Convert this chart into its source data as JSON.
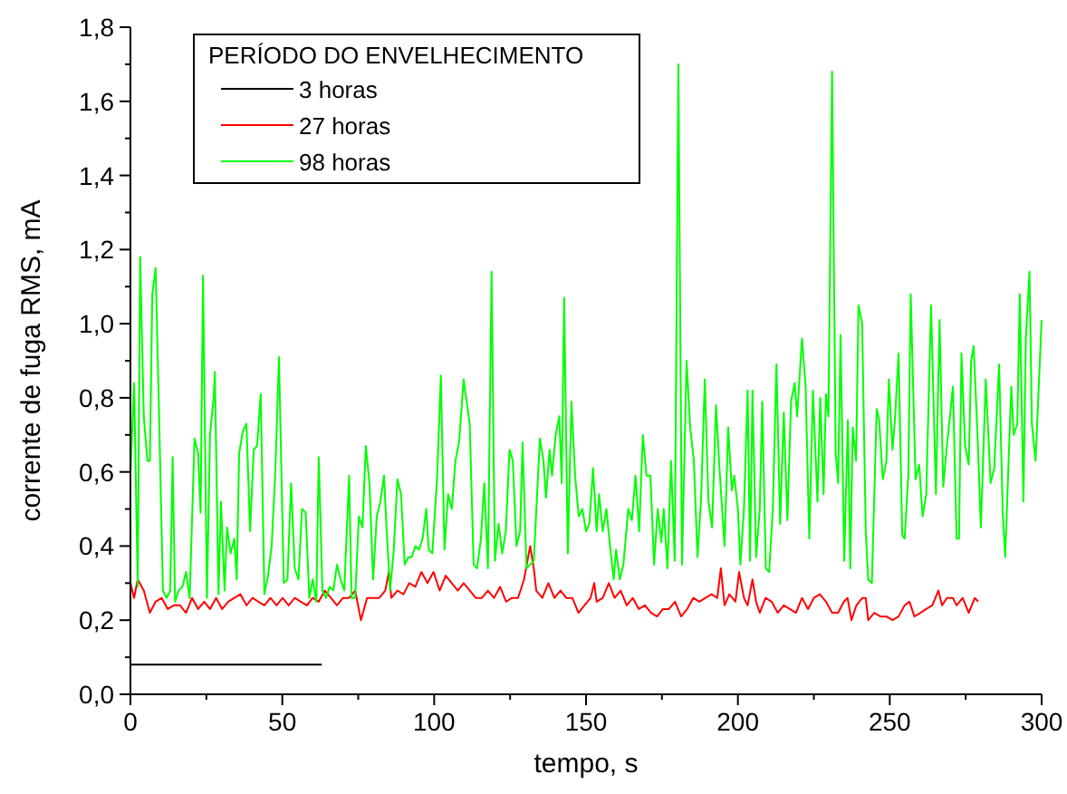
{
  "chart_data": {
    "type": "line",
    "xlabel": "tempo, s",
    "ylabel": "corrente de fuga RMS, mA",
    "legend_title": "PERÍODO DO ENVELHECIMENTO",
    "legend": "top left",
    "grid": false,
    "xlim": [
      0,
      300
    ],
    "ylim": [
      0,
      1.8
    ],
    "xticks": [
      0,
      {
        "value": 25,
        "label": null
      },
      50,
      {
        "value": 75,
        "label": null
      },
      100,
      {
        "value": 125,
        "label": null
      },
      150,
      {
        "value": 175,
        "label": null
      },
      200,
      {
        "value": 225,
        "label": null
      },
      250,
      {
        "value": 275,
        "label": null
      },
      300
    ],
    "yticks": [
      {
        "value": 0,
        "label": "0,0"
      },
      {
        "value": 0.1,
        "label": null
      },
      {
        "value": 0.2,
        "label": "0,2"
      },
      {
        "value": 0.3,
        "label": null
      },
      {
        "value": 0.4,
        "label": "0,4"
      },
      {
        "value": 0.5,
        "label": null
      },
      {
        "value": 0.6,
        "label": "0,6"
      },
      {
        "value": 0.7,
        "label": null
      },
      {
        "value": 0.8,
        "label": "0,8"
      },
      {
        "value": 0.9,
        "label": null
      },
      {
        "value": 1.0,
        "label": "1,0"
      },
      {
        "value": 1.1,
        "label": null
      },
      {
        "value": 1.2,
        "label": "1,2"
      },
      {
        "value": 1.3,
        "label": null
      },
      {
        "value": 1.4,
        "label": "1,4"
      },
      {
        "value": 1.5,
        "label": null
      },
      {
        "value": 1.6,
        "label": "1,6"
      },
      {
        "value": 1.7,
        "label": null
      },
      {
        "value": 1.8,
        "label": "1,8"
      }
    ],
    "series": [
      {
        "name": "3 horas",
        "color": "#000000",
        "x": [
          0,
          63
        ],
        "values": [
          0.08,
          0.08
        ]
      },
      {
        "name": "27 horas",
        "color": "#ff0000",
        "x": [
          0,
          1.2,
          2.4,
          4.4,
          6.4,
          8.3,
          10.3,
          12.3,
          14.3,
          16.3,
          18.3,
          20.3,
          22.3,
          24.3,
          26.2,
          28.2,
          30.2,
          32.2,
          34.2,
          36.2,
          38.2,
          40.2,
          42.1,
          44.1,
          46.1,
          48.1,
          50.1,
          52.1,
          54.1,
          56.1,
          58.1,
          60.0,
          62.0,
          64.0,
          66.0,
          68.0,
          70.0,
          72.0,
          74.0,
          75.9,
          77.9,
          79.9,
          81.9,
          83.9,
          85.1,
          85.9,
          87.9,
          89.9,
          91.8,
          93.8,
          95.8,
          97.8,
          99.8,
          101.8,
          103.8,
          105.8,
          107.8,
          109.7,
          113.7,
          115.7,
          117.7,
          119.7,
          121.7,
          123.7,
          125.6,
          127.6,
          129.6,
          131.6,
          132.8,
          133.6,
          135.6,
          137.6,
          139.6,
          141.6,
          143.5,
          145.5,
          147.5,
          149.5,
          151.5,
          152.7,
          153.5,
          155.5,
          157.5,
          159.4,
          161.4,
          163.4,
          165.4,
          167.4,
          169.4,
          171.4,
          173.4,
          175.3,
          177.3,
          179.3,
          181.3,
          183.3,
          185.3,
          187.3,
          189.3,
          191.3,
          193.2,
          194.4,
          195.6,
          197.2,
          199.2,
          200.4,
          202.0,
          203.2,
          204.8,
          206.0,
          207.2,
          209.1,
          211.1,
          213.1,
          215.1,
          217.1,
          219.1,
          221.1,
          223.1,
          225.0,
          227.0,
          229.0,
          231.0,
          233.0,
          234.9,
          236.1,
          237.4,
          239.0,
          241.0,
          242.1,
          242.9,
          244.9,
          246.9,
          248.9,
          250.9,
          252.9,
          254.9,
          256.5,
          258.1,
          260.1,
          262.0,
          264.0,
          266.0,
          267.2,
          268.8,
          270.8,
          272.0,
          274.0,
          276.0,
          278.0,
          279.1
        ],
        "values": [
          0.3,
          0.26,
          0.31,
          0.28,
          0.22,
          0.25,
          0.26,
          0.23,
          0.24,
          0.24,
          0.22,
          0.26,
          0.23,
          0.25,
          0.23,
          0.26,
          0.23,
          0.25,
          0.26,
          0.27,
          0.24,
          0.26,
          0.25,
          0.24,
          0.26,
          0.24,
          0.26,
          0.24,
          0.26,
          0.25,
          0.24,
          0.26,
          0.25,
          0.28,
          0.26,
          0.24,
          0.26,
          0.26,
          0.28,
          0.2,
          0.26,
          0.26,
          0.26,
          0.28,
          0.33,
          0.26,
          0.28,
          0.27,
          0.3,
          0.29,
          0.33,
          0.3,
          0.33,
          0.28,
          0.32,
          0.3,
          0.28,
          0.3,
          0.26,
          0.26,
          0.28,
          0.26,
          0.29,
          0.25,
          0.26,
          0.26,
          0.31,
          0.4,
          0.34,
          0.28,
          0.26,
          0.3,
          0.26,
          0.28,
          0.26,
          0.26,
          0.22,
          0.24,
          0.26,
          0.3,
          0.25,
          0.26,
          0.3,
          0.26,
          0.28,
          0.24,
          0.26,
          0.23,
          0.24,
          0.22,
          0.21,
          0.23,
          0.23,
          0.25,
          0.21,
          0.23,
          0.26,
          0.25,
          0.26,
          0.27,
          0.26,
          0.34,
          0.24,
          0.27,
          0.25,
          0.33,
          0.26,
          0.24,
          0.31,
          0.25,
          0.22,
          0.26,
          0.25,
          0.22,
          0.24,
          0.23,
          0.22,
          0.26,
          0.23,
          0.26,
          0.27,
          0.25,
          0.22,
          0.22,
          0.25,
          0.26,
          0.2,
          0.24,
          0.26,
          0.26,
          0.2,
          0.22,
          0.21,
          0.21,
          0.2,
          0.21,
          0.24,
          0.25,
          0.21,
          0.22,
          0.23,
          0.24,
          0.28,
          0.24,
          0.26,
          0.26,
          0.24,
          0.26,
          0.22,
          0.26,
          0.25
        ]
      },
      {
        "name": "98 horas",
        "color": "#00ff00",
        "x": [
          0,
          1.2,
          2.4,
          3.2,
          4.4,
          5.6,
          6.4,
          7.2,
          8.3,
          9.5,
          10.7,
          11.9,
          13.1,
          13.9,
          14.7,
          15.9,
          17.1,
          18.3,
          19.5,
          21.1,
          22.3,
          23.1,
          23.9,
          25.2,
          26.2,
          27.4,
          27.8,
          29.0,
          29.8,
          31.0,
          31.8,
          33.0,
          34.2,
          35.0,
          35.8,
          37.0,
          38.2,
          39.4,
          40.6,
          41.7,
          42.9,
          44.1,
          45.3,
          46.5,
          47.7,
          48.9,
          50.5,
          51.7,
          52.9,
          54.1,
          55.3,
          56.5,
          57.7,
          58.9,
          60.0,
          61.2,
          62.0,
          63.2,
          64.4,
          65.6,
          66.8,
          68.0,
          69.2,
          70.4,
          72.0,
          72.8,
          74.0,
          75.2,
          76.4,
          77.5,
          78.7,
          79.9,
          81.1,
          82.3,
          83.5,
          84.3,
          85.5,
          86.7,
          87.9,
          89.1,
          90.3,
          91.5,
          92.6,
          93.8,
          95.0,
          96.2,
          97.4,
          98.2,
          99.4,
          101.0,
          102.2,
          103.4,
          104.6,
          105.8,
          107.0,
          108.2,
          109.7,
          111.7,
          113.0,
          114.1,
          115.4,
          116.5,
          117.7,
          118.9,
          120.0,
          121.2,
          122.4,
          123.6,
          124.8,
          125.9,
          127.1,
          128.3,
          129.1,
          130.4,
          131.6,
          132.8,
          134.8,
          136.0,
          136.8,
          138.0,
          138.8,
          140.0,
          141.2,
          142.0,
          142.8,
          144.0,
          145.2,
          146.4,
          147.6,
          148.8,
          150.0,
          151.1,
          152.3,
          153.5,
          154.3,
          155.5,
          156.7,
          157.9,
          159.1,
          159.9,
          161.1,
          162.3,
          163.9,
          165.1,
          166.3,
          167.5,
          168.7,
          169.9,
          171.2,
          172.4,
          173.6,
          174.8,
          175.6,
          176.8,
          178.0,
          179.2,
          180.4,
          181.6,
          183.1,
          184.3,
          185.5,
          186.7,
          187.9,
          189.1,
          190.3,
          191.5,
          192.8,
          194.0,
          195.6,
          196.8,
          198.0,
          198.8,
          200.0,
          200.8,
          202.0,
          203.2,
          204.0,
          204.8,
          206.0,
          207.2,
          208.0,
          209.2,
          210.3,
          211.5,
          212.7,
          213.9,
          215.1,
          216.3,
          217.5,
          218.7,
          219.5,
          221.1,
          222.3,
          223.5,
          224.7,
          226.2,
          227.1,
          228.2,
          229.0,
          229.8,
          231.0,
          232.2,
          233.0,
          233.8,
          235.0,
          236.2,
          237.0,
          237.8,
          238.9,
          239.7,
          240.9,
          242.1,
          242.9,
          244.1,
          245.7,
          246.5,
          247.7,
          248.9,
          249.7,
          250.9,
          251.7,
          252.9,
          254.1,
          254.9,
          256.1,
          256.9,
          258.5,
          259.7,
          260.8,
          262.0,
          263.6,
          265.2,
          266.4,
          267.6,
          268.8,
          270.8,
          272.0,
          272.8,
          273.6,
          274.8,
          276.0,
          276.8,
          277.6,
          278.8,
          280.0,
          281.6,
          283.2,
          284.4,
          286.0,
          287.2,
          288.0,
          290.0,
          290.8,
          292.0,
          292.8,
          294.0,
          294.8,
          296.0,
          296.8,
          298.0,
          300.0
        ],
        "values": [
          0.59,
          0.84,
          0.29,
          1.18,
          0.75,
          0.63,
          0.63,
          1.08,
          1.15,
          0.73,
          0.28,
          0.26,
          0.28,
          0.64,
          0.25,
          0.28,
          0.29,
          0.33,
          0.26,
          0.69,
          0.65,
          0.49,
          1.13,
          0.26,
          0.7,
          0.8,
          0.87,
          0.27,
          0.52,
          0.28,
          0.45,
          0.38,
          0.42,
          0.31,
          0.65,
          0.71,
          0.73,
          0.44,
          0.66,
          0.67,
          0.81,
          0.27,
          0.32,
          0.4,
          0.6,
          0.91,
          0.3,
          0.31,
          0.57,
          0.34,
          0.31,
          0.5,
          0.49,
          0.26,
          0.31,
          0.25,
          0.64,
          0.28,
          0.26,
          0.29,
          0.28,
          0.35,
          0.31,
          0.28,
          0.59,
          0.26,
          0.26,
          0.48,
          0.45,
          0.67,
          0.57,
          0.31,
          0.48,
          0.52,
          0.59,
          0.45,
          0.28,
          0.39,
          0.58,
          0.54,
          0.35,
          0.37,
          0.37,
          0.4,
          0.39,
          0.42,
          0.5,
          0.39,
          0.38,
          0.59,
          0.86,
          0.39,
          0.54,
          0.5,
          0.63,
          0.68,
          0.85,
          0.73,
          0.35,
          0.34,
          0.42,
          0.57,
          0.34,
          1.14,
          0.36,
          0.46,
          0.38,
          0.44,
          0.66,
          0.63,
          0.4,
          0.44,
          0.68,
          0.34,
          0.35,
          0.36,
          0.69,
          0.63,
          0.53,
          0.66,
          0.59,
          0.7,
          0.75,
          0.57,
          1.07,
          0.38,
          0.79,
          0.59,
          0.48,
          0.5,
          0.44,
          0.46,
          0.61,
          0.44,
          0.54,
          0.44,
          0.5,
          0.4,
          0.31,
          0.39,
          0.31,
          0.35,
          0.5,
          0.47,
          0.59,
          0.44,
          0.7,
          0.59,
          0.59,
          0.35,
          0.5,
          0.41,
          0.5,
          0.34,
          0.63,
          0.36,
          1.7,
          0.35,
          0.9,
          0.72,
          0.63,
          0.37,
          0.53,
          0.85,
          0.52,
          0.45,
          0.78,
          0.6,
          0.4,
          0.72,
          0.55,
          0.59,
          0.5,
          0.35,
          0.5,
          0.82,
          0.36,
          0.82,
          0.37,
          0.5,
          0.79,
          0.34,
          0.33,
          0.5,
          0.89,
          0.46,
          0.76,
          0.47,
          0.79,
          0.84,
          0.75,
          0.96,
          0.83,
          0.42,
          0.82,
          0.52,
          0.8,
          0.54,
          0.81,
          0.75,
          1.68,
          0.65,
          0.57,
          0.97,
          0.36,
          0.74,
          0.34,
          0.72,
          0.63,
          1.05,
          1.0,
          0.44,
          0.31,
          0.3,
          0.77,
          0.74,
          0.58,
          0.63,
          0.85,
          0.66,
          0.74,
          0.92,
          0.43,
          0.42,
          0.59,
          1.08,
          0.58,
          0.62,
          0.48,
          0.54,
          1.05,
          0.54,
          1.01,
          0.56,
          0.67,
          0.83,
          0.42,
          0.42,
          0.92,
          0.67,
          0.62,
          0.9,
          0.94,
          0.72,
          0.45,
          0.85,
          0.57,
          0.61,
          0.89,
          0.49,
          0.37,
          0.83,
          0.7,
          0.73,
          1.08,
          0.52,
          0.96,
          1.14,
          0.73,
          0.63,
          1.01
        ]
      }
    ]
  }
}
